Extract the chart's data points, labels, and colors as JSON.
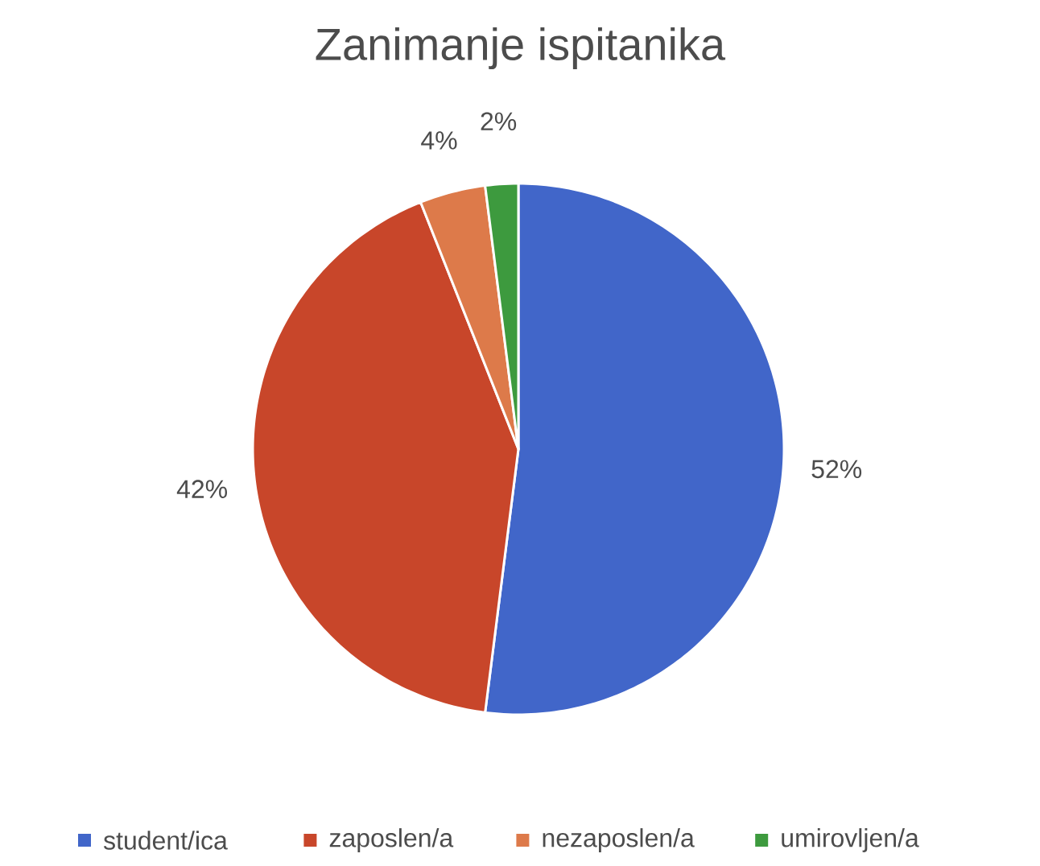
{
  "chart_data": {
    "type": "pie",
    "title": "Zanimanje ispitanika",
    "categories": [
      "student/ica",
      "zaposlen/a",
      "nezaposlen/a",
      "umirovljen/a"
    ],
    "values": [
      52,
      42,
      4,
      2
    ],
    "colors": [
      "#4166c9",
      "#c8462a",
      "#dd7a4a",
      "#3d9a3e"
    ],
    "value_labels": [
      "52%",
      "42%",
      "4%",
      "2%"
    ],
    "legend": "bottom"
  }
}
